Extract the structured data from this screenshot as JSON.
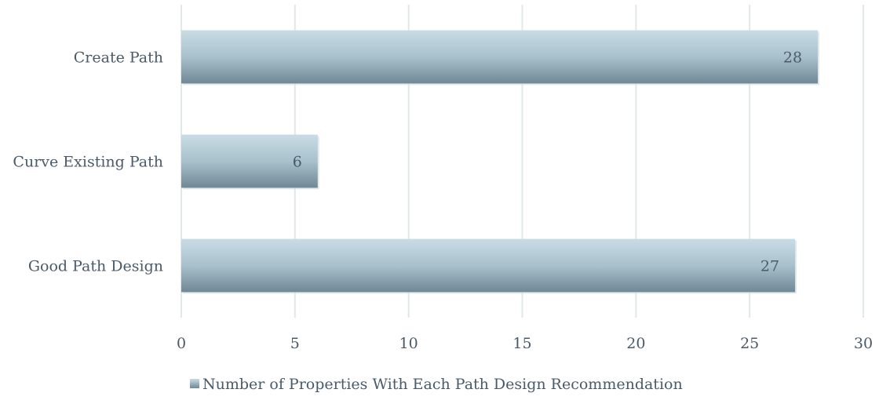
{
  "chart_data": {
    "type": "bar",
    "orientation": "horizontal",
    "categories": [
      "Create Path",
      "Curve Existing Path",
      "Good Path Design"
    ],
    "series": [
      {
        "name": "Number of Properties With Each Path Design Recommendation",
        "values": [
          28,
          6,
          27
        ],
        "color": "#8fa9b6"
      }
    ],
    "xlim": [
      0,
      30
    ],
    "xticks": [
      0,
      5,
      10,
      15,
      20,
      25,
      30
    ],
    "grid": "vertical",
    "legend_position": "bottom",
    "data_labels": true,
    "colors": {
      "bar_light": "#c8dce5",
      "bar_dark": "#6f8895",
      "text": "#4a5a68",
      "grid": "#e2e8e4"
    }
  }
}
